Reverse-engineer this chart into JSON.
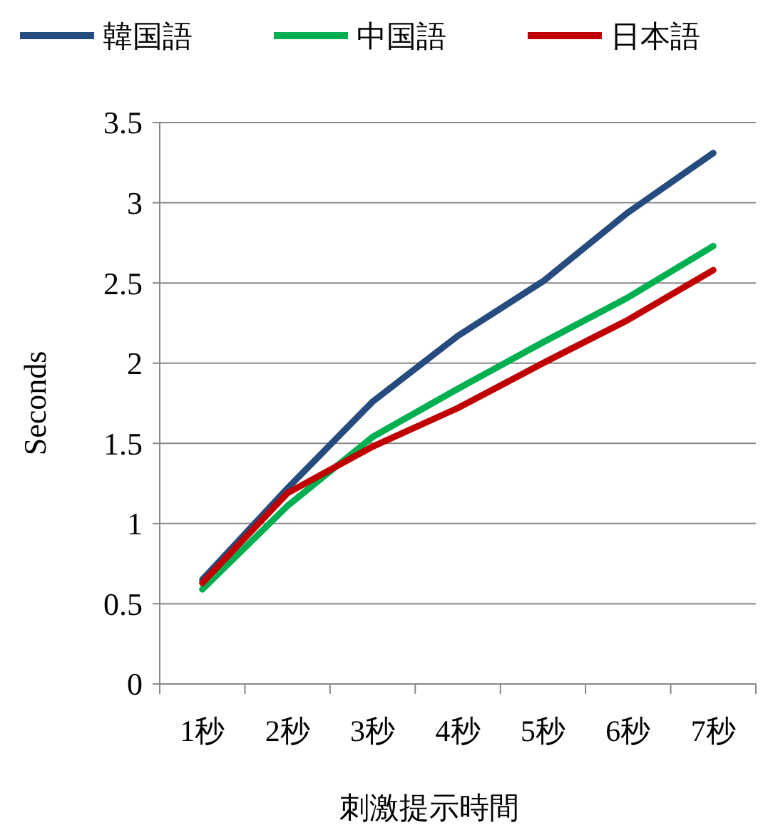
{
  "chart_data": {
    "type": "line",
    "xlabel": "刺激提示時間",
    "ylabel": "Seconds",
    "categories": [
      "1秒",
      "2秒",
      "3秒",
      "4秒",
      "5秒",
      "6秒",
      "7秒"
    ],
    "series": [
      {
        "name": "韓国語",
        "color": "#264b7e",
        "values": [
          0.65,
          1.22,
          1.76,
          2.17,
          2.51,
          2.94,
          3.31
        ]
      },
      {
        "name": "中国語",
        "color": "#00b050",
        "values": [
          0.59,
          1.11,
          1.54,
          1.84,
          2.13,
          2.41,
          2.73
        ]
      },
      {
        "name": "日本語",
        "color": "#c00000",
        "values": [
          0.63,
          1.19,
          1.48,
          1.72,
          2.0,
          2.27,
          2.58
        ]
      }
    ],
    "ylim": [
      0,
      3.5
    ],
    "yticks": [
      0,
      0.5,
      1,
      1.5,
      2,
      2.5,
      3,
      3.5
    ],
    "grid": "y",
    "legend": "top",
    "marker": "none",
    "line_style": "solid"
  }
}
